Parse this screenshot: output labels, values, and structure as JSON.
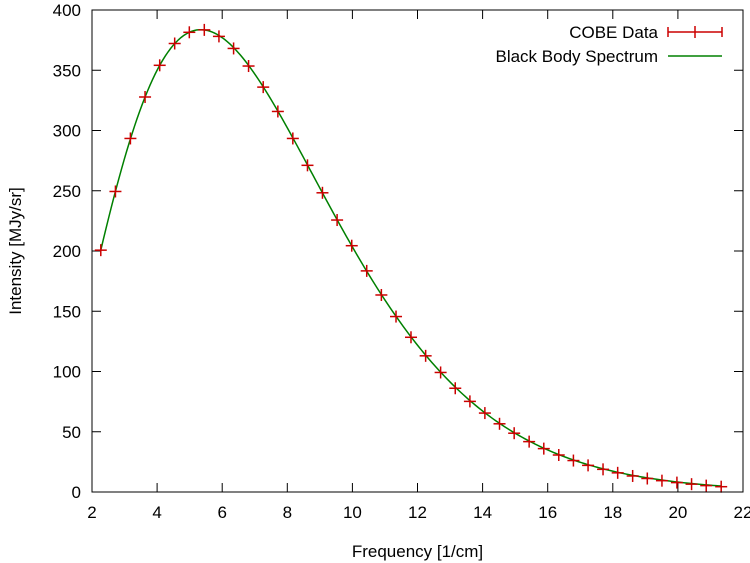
{
  "chart_data": {
    "type": "scatter",
    "xlabel": "Frequency [1/cm]",
    "ylabel": "Intensity [MJy/sr]",
    "xlim": [
      2,
      22
    ],
    "ylim": [
      0,
      400
    ],
    "xticks": [
      2,
      4,
      6,
      8,
      10,
      12,
      14,
      16,
      18,
      20,
      22
    ],
    "yticks": [
      0,
      50,
      100,
      150,
      200,
      250,
      300,
      350,
      400
    ],
    "grid": false,
    "legend_position": "top-right",
    "series": [
      {
        "name": "COBE Data",
        "style": "errorbar-points",
        "color": "#cc0000",
        "x": [
          2.27,
          2.72,
          3.18,
          3.63,
          4.08,
          4.54,
          4.99,
          5.45,
          5.9,
          6.35,
          6.81,
          7.26,
          7.71,
          8.17,
          8.62,
          9.08,
          9.53,
          9.98,
          10.44,
          10.89,
          11.34,
          11.8,
          12.25,
          12.71,
          13.16,
          13.61,
          14.07,
          14.52,
          14.97,
          15.43,
          15.88,
          16.34,
          16.79,
          17.24,
          17.7,
          18.15,
          18.61,
          19.06,
          19.51,
          19.97,
          20.42,
          20.87,
          21.33
        ],
        "y": [
          200.7,
          249.4,
          293.4,
          327.8,
          354.1,
          372.2,
          381.5,
          383.5,
          378.1,
          368.1,
          353.5,
          336.0,
          315.8,
          293.4,
          271.1,
          248.3,
          225.7,
          204.4,
          183.5,
          163.5,
          145.6,
          128.4,
          113.0,
          99.2,
          86.1,
          75.2,
          65.5,
          56.6,
          48.8,
          41.8,
          36.0,
          30.7,
          26.1,
          22.1,
          18.8,
          15.9,
          13.3,
          11.2,
          9.4,
          7.8,
          6.5,
          5.3,
          4.4
        ]
      },
      {
        "name": "Black Body Spectrum",
        "style": "line",
        "color": "#008000",
        "model": "planck",
        "temperature_K": 2.725
      }
    ]
  }
}
